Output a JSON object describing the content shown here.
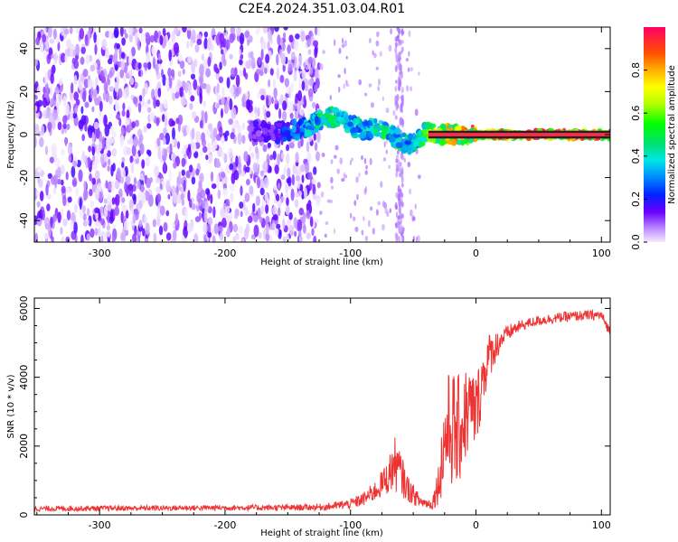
{
  "title": "C2E4.2024.351.03.04.R01",
  "colors": {
    "snr_line": "#ee3333",
    "carrier_line": "#ff2a4a",
    "noise_purple": "#7a1aff"
  },
  "chart_data": [
    {
      "type": "heatmap",
      "xlabel": "Height of straight line (km)",
      "ylabel": "Frequency (Hz)",
      "xlim": [
        -352,
        107
      ],
      "ylim": [
        -50,
        50
      ],
      "xticks": [
        -300,
        -200,
        -100,
        0,
        100
      ],
      "yticks": [
        -40,
        -20,
        0,
        20,
        40
      ],
      "grid": false,
      "noise_region_km": [
        -352,
        -125
      ],
      "signal_track": {
        "x": [
          -180,
          -160,
          -140,
          -130,
          -120,
          -112,
          -105,
          -98,
          -90,
          -80,
          -70,
          -60,
          -50,
          -40,
          -30,
          -20,
          -10,
          0,
          50,
          107
        ],
        "freq": [
          2,
          1,
          2,
          5,
          8,
          8,
          6,
          4,
          2,
          3,
          1,
          -3,
          -5,
          1,
          0,
          0,
          0,
          0,
          0,
          0
        ],
        "amplitude": [
          0.15,
          0.2,
          0.35,
          0.45,
          0.5,
          0.5,
          0.45,
          0.45,
          0.45,
          0.5,
          0.5,
          0.45,
          0.45,
          0.6,
          0.75,
          0.8,
          0.85,
          0.9,
          0.95,
          0.95
        ]
      },
      "colorbar": {
        "label": "Normalized spectral amplitude",
        "range": [
          0,
          1
        ],
        "ticks": [
          "0.0",
          "0.2",
          "0.4",
          "0.6",
          "0.8"
        ]
      }
    },
    {
      "type": "line",
      "xlabel": "Height of straight line (km)",
      "ylabel": "SNR (10 * v/v)",
      "xlim": [
        -352,
        107
      ],
      "ylim": [
        0,
        6300
      ],
      "xticks": [
        -300,
        -200,
        -100,
        0,
        100
      ],
      "yticks": [
        0,
        2000,
        4000,
        6000
      ],
      "grid": false,
      "series": [
        {
          "x": [
            -352,
            -300,
            -250,
            -200,
            -150,
            -120,
            -100,
            -90,
            -80,
            -70,
            -65,
            -60,
            -55,
            -50,
            -45,
            -40,
            -35,
            -30,
            -25,
            -20,
            -15,
            -10,
            -5,
            0,
            5,
            10,
            20,
            30,
            40,
            50,
            60,
            70,
            80,
            90,
            100,
            107
          ],
          "y": [
            180,
            190,
            200,
            210,
            210,
            230,
            320,
            450,
            700,
            1100,
            1500,
            1200,
            800,
            600,
            400,
            350,
            300,
            900,
            2200,
            2600,
            2300,
            2800,
            3100,
            3000,
            3900,
            4600,
            5100,
            5400,
            5550,
            5650,
            5700,
            5750,
            5780,
            5800,
            5800,
            5300
          ],
          "noise_amp": [
            80,
            80,
            80,
            80,
            90,
            100,
            150,
            200,
            300,
            500,
            800,
            650,
            400,
            300,
            200,
            150,
            150,
            600,
            1500,
            1800,
            1700,
            1500,
            1300,
            1100,
            900,
            700,
            300,
            200,
            150,
            150,
            150,
            150,
            150,
            150,
            150,
            150
          ]
        }
      ]
    }
  ]
}
